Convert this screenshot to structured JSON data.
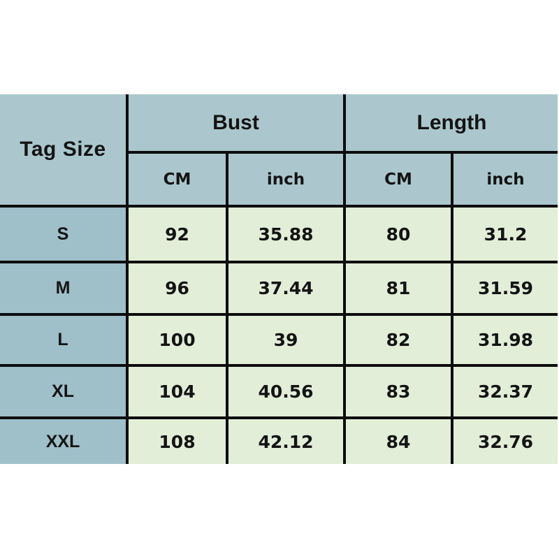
{
  "colors": {
    "header_bg": "#abc7cd",
    "label_bg": "#9fbfc9",
    "data_bg": "#e2eed8",
    "grid_line": "#0d0d0d",
    "text": "#141414",
    "page_bg": "#ffffff"
  },
  "size_chart": {
    "corner_label": "Tag Size",
    "column_groups": [
      {
        "label": "Bust",
        "sub": [
          "CM",
          "inch"
        ]
      },
      {
        "label": "Length",
        "sub": [
          "CM",
          "inch"
        ]
      }
    ],
    "rows": [
      {
        "size": "S",
        "values": [
          "92",
          "35.88",
          "80",
          "31.2"
        ]
      },
      {
        "size": "M",
        "values": [
          "96",
          "37.44",
          "81",
          "31.59"
        ]
      },
      {
        "size": "L",
        "values": [
          "100",
          "39",
          "82",
          "31.98"
        ]
      },
      {
        "size": "XL",
        "values": [
          "104",
          "40.56",
          "83",
          "32.37"
        ]
      },
      {
        "size": "XXL",
        "values": [
          "108",
          "42.12",
          "84",
          "32.76"
        ]
      }
    ]
  },
  "chart_data": {
    "type": "table",
    "columns": [
      "Tag Size",
      "Bust CM",
      "Bust inch",
      "Length CM",
      "Length inch"
    ],
    "rows": [
      [
        "S",
        92,
        35.88,
        80,
        31.2
      ],
      [
        "M",
        96,
        37.44,
        81,
        31.59
      ],
      [
        "L",
        100,
        39,
        82,
        31.98
      ],
      [
        "XL",
        104,
        40.56,
        83,
        32.37
      ],
      [
        "XXL",
        108,
        42.12,
        84,
        32.76
      ]
    ],
    "title": "",
    "layout": "header row with two grouped columns (Bust, Length), each split into CM and inch sub-columns; first column lists tag sizes S-XXL"
  }
}
